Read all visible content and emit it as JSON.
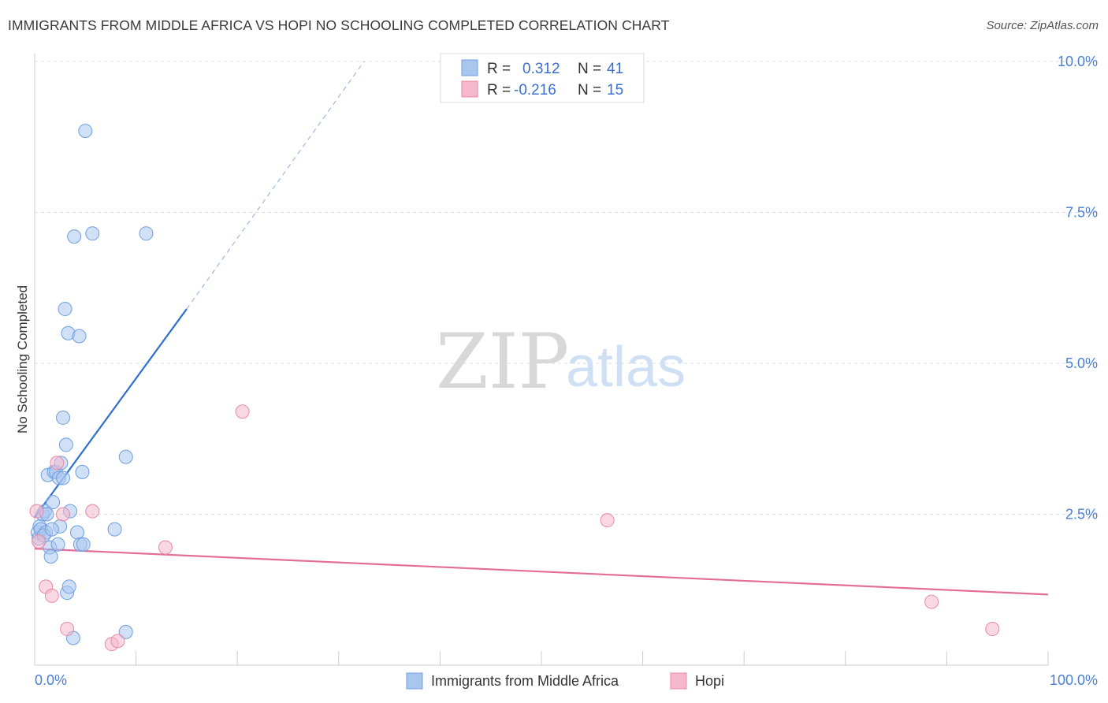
{
  "title": "IMMIGRANTS FROM MIDDLE AFRICA VS HOPI NO SCHOOLING COMPLETED CORRELATION CHART",
  "source": "Source: ZipAtlas.com",
  "watermark": {
    "zip": "ZIP",
    "atlas": "atlas"
  },
  "legend": {
    "rows": [
      {
        "r_label": "R =",
        "r_value": "0.312",
        "n_label": "N =",
        "n_value": "41",
        "color": "#a9c6ef"
      },
      {
        "r_label": "R =",
        "r_value": "-0.216",
        "n_label": "N =",
        "n_value": "15",
        "color": "#f5b8cc"
      }
    ]
  },
  "chart_data": {
    "type": "scatter",
    "title": "IMMIGRANTS FROM MIDDLE AFRICA VS HOPI NO SCHOOLING COMPLETED CORRELATION CHART",
    "xlabel": "",
    "ylabel": "No Schooling Completed",
    "xlim": [
      0,
      100
    ],
    "ylim": [
      0,
      10
    ],
    "x_tick_labels": [
      "0.0%",
      "100.0%"
    ],
    "y_tick_values": [
      2.5,
      5.0,
      7.5,
      10.0
    ],
    "y_tick_labels": [
      "2.5%",
      "5.0%",
      "7.5%",
      "10.0%"
    ],
    "grid": true,
    "legend_position": "top-center",
    "series": [
      {
        "name": "Immigrants from Middle Africa",
        "color": "#a9c6ef",
        "stroke": "#6f9fe0",
        "points": [
          [
            0.3,
            2.2
          ],
          [
            0.4,
            2.1
          ],
          [
            0.5,
            2.3
          ],
          [
            0.6,
            2.25
          ],
          [
            0.8,
            2.5
          ],
          [
            1.0,
            2.55
          ],
          [
            1.1,
            2.2
          ],
          [
            1.2,
            2.5
          ],
          [
            1.3,
            3.15
          ],
          [
            1.5,
            1.95
          ],
          [
            1.6,
            1.8
          ],
          [
            1.8,
            2.7
          ],
          [
            1.9,
            3.2
          ],
          [
            2.1,
            3.2
          ],
          [
            2.3,
            2.0
          ],
          [
            2.4,
            3.1
          ],
          [
            2.5,
            2.3
          ],
          [
            2.6,
            3.35
          ],
          [
            2.8,
            3.1
          ],
          [
            2.8,
            4.1
          ],
          [
            3.0,
            5.9
          ],
          [
            3.1,
            3.65
          ],
          [
            3.2,
            1.2
          ],
          [
            3.3,
            5.5
          ],
          [
            3.4,
            1.3
          ],
          [
            3.5,
            2.55
          ],
          [
            3.8,
            0.45
          ],
          [
            3.9,
            7.1
          ],
          [
            4.2,
            2.2
          ],
          [
            4.4,
            5.45
          ],
          [
            4.5,
            2.0
          ],
          [
            4.7,
            3.2
          ],
          [
            4.8,
            2.0
          ],
          [
            5.0,
            8.85
          ],
          [
            5.7,
            7.15
          ],
          [
            7.9,
            2.25
          ],
          [
            9.0,
            3.45
          ],
          [
            9.0,
            0.55
          ],
          [
            11.0,
            7.15
          ],
          [
            0.9,
            2.15
          ],
          [
            1.7,
            2.25
          ]
        ],
        "trend": {
          "x_start": 0.0,
          "y_start": 2.45,
          "x_solid_end": 15.0,
          "y_solid_end": 5.9,
          "x_dash_end": 32.5,
          "y_dash_end": 10.0
        }
      },
      {
        "name": "Hopi",
        "color": "#f5b8cc",
        "stroke": "#e889a8",
        "points": [
          [
            0.2,
            2.55
          ],
          [
            0.4,
            2.05
          ],
          [
            1.1,
            1.3
          ],
          [
            1.7,
            1.15
          ],
          [
            2.2,
            3.35
          ],
          [
            2.8,
            2.5
          ],
          [
            3.2,
            0.6
          ],
          [
            5.7,
            2.55
          ],
          [
            7.6,
            0.35
          ],
          [
            8.2,
            0.4
          ],
          [
            12.9,
            1.95
          ],
          [
            20.5,
            4.2
          ],
          [
            56.5,
            2.4
          ],
          [
            88.5,
            1.05
          ],
          [
            94.5,
            0.6
          ]
        ],
        "trend": {
          "x_start": 0.0,
          "y_start": 1.93,
          "x_end": 100.0,
          "y_end": 1.17
        }
      }
    ]
  },
  "bottom_legend": {
    "items": [
      {
        "label": "Immigrants from Middle Africa",
        "color": "#a9c6ef"
      },
      {
        "label": "Hopi",
        "color": "#f5b8cc"
      }
    ]
  }
}
